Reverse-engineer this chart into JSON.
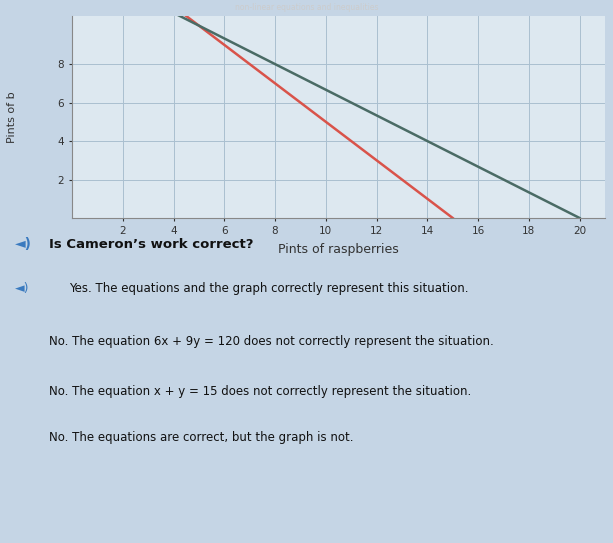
{
  "title": "",
  "xlabel": "Pints of raspberries",
  "ylabel": "Pints of b",
  "xlim": [
    0,
    21
  ],
  "ylim": [
    0,
    10.5
  ],
  "xticks": [
    2,
    4,
    6,
    8,
    10,
    12,
    14,
    16,
    18,
    20
  ],
  "yticks": [
    2,
    4,
    6,
    8
  ],
  "line1": {
    "x": [
      0,
      15
    ],
    "y": [
      15,
      0
    ],
    "color": "#d9534a",
    "linewidth": 1.8,
    "label": "x + y = 15"
  },
  "line2": {
    "x": [
      0,
      20
    ],
    "y": [
      13.333,
      0
    ],
    "color": "#4a6b65",
    "linewidth": 1.8,
    "label": "6x + 9y = 120"
  },
  "bg_color": "#c5d5e5",
  "plot_bg_color": "#dde8f0",
  "grid_color": "#aabfcf",
  "question_text": "Is Cameron’s work correct?",
  "options": [
    {
      "text": "Yes. The equations and the graph correctly represent this situation.",
      "bg": "#dce8f4",
      "border": "#a8c4dc",
      "font_color": "#111111",
      "indent": false
    },
    {
      "text": "No. The equation 6x + 9y = 120 does not correctly represent the situation.",
      "bg": "#d0e4f4",
      "border": "#7ab0d8",
      "font_color": "#111111",
      "indent": true
    },
    {
      "text": "No. The equation x + y = 15 does not correctly represent the situation.",
      "bg": "#e8f0f8",
      "border": "#a8c4dc",
      "font_color": "#111111",
      "indent": true
    },
    {
      "text": "No. The equations are correct, but the graph is not.",
      "bg": "#e8f0f8",
      "border": "#a8c4dc",
      "font_color": "#111111",
      "indent": true
    }
  ],
  "top_bar_color": "#6b2020",
  "top_bar_text": "non-linear equations and inequalities",
  "speaker_color": "#3a7abf"
}
